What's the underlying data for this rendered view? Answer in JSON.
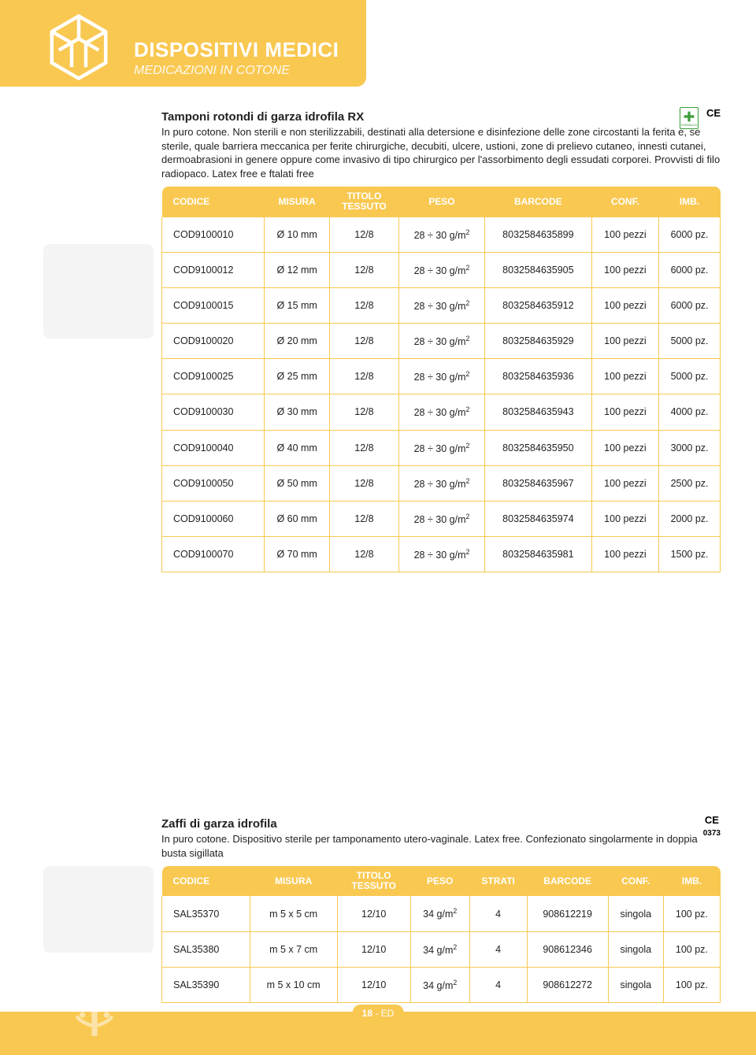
{
  "colors": {
    "accent": "#f9c851",
    "text": "#222222",
    "white": "#ffffff",
    "green": "#3a9d3a",
    "placeholder": "#f4f4f4"
  },
  "header": {
    "title": "DISPOSITIVI MEDICI",
    "subtitle": "MEDICAZIONI IN COTONE"
  },
  "product1": {
    "title": "Tamponi rotondi di garza idrofila RX",
    "description": "In puro cotone. Non sterili e non sterilizzabili, destinati alla detersione e disinfezione delle zone circostanti la ferita e, se sterile, quale barriera meccanica per ferite chirurgiche, decubiti, ulcere, ustioni, zone di prelievo cutaneo, innesti cutanei, dermoabrasioni in genere oppure come invasivo di tipo chirurgico per l'assorbimento degli essudati corporei. Provvisti di filo radiopaco. Latex free e ftalati free",
    "ce": "CE",
    "pharmacy_label": "FARMACIA",
    "columns": [
      "CODICE",
      "MISURA",
      "TITOLO TESSUTO",
      "PESO",
      "BARCODE",
      "CONF.",
      "IMB."
    ],
    "rows": [
      {
        "codice": "COD9100010",
        "misura": "Ø 10 mm",
        "titolo": "12/8",
        "peso": "28 ÷ 30 g/m²",
        "barcode": "8032584635899",
        "conf": "100 pezzi",
        "imb": "6000 pz."
      },
      {
        "codice": "COD9100012",
        "misura": "Ø 12 mm",
        "titolo": "12/8",
        "peso": "28 ÷ 30 g/m²",
        "barcode": "8032584635905",
        "conf": "100 pezzi",
        "imb": "6000 pz."
      },
      {
        "codice": "COD9100015",
        "misura": "Ø 15 mm",
        "titolo": "12/8",
        "peso": "28 ÷ 30 g/m²",
        "barcode": "8032584635912",
        "conf": "100 pezzi",
        "imb": "6000 pz."
      },
      {
        "codice": "COD9100020",
        "misura": "Ø 20 mm",
        "titolo": "12/8",
        "peso": "28 ÷ 30 g/m²",
        "barcode": "8032584635929",
        "conf": "100 pezzi",
        "imb": "5000 pz."
      },
      {
        "codice": "COD9100025",
        "misura": "Ø 25 mm",
        "titolo": "12/8",
        "peso": "28 ÷ 30 g/m²",
        "barcode": "8032584635936",
        "conf": "100 pezzi",
        "imb": "5000 pz."
      },
      {
        "codice": "COD9100030",
        "misura": "Ø 30 mm",
        "titolo": "12/8",
        "peso": "28 ÷ 30 g/m²",
        "barcode": "8032584635943",
        "conf": "100 pezzi",
        "imb": "4000 pz."
      },
      {
        "codice": "COD9100040",
        "misura": "Ø 40 mm",
        "titolo": "12/8",
        "peso": "28 ÷ 30 g/m²",
        "barcode": "8032584635950",
        "conf": "100 pezzi",
        "imb": "3000 pz."
      },
      {
        "codice": "COD9100050",
        "misura": "Ø 50 mm",
        "titolo": "12/8",
        "peso": "28 ÷ 30 g/m²",
        "barcode": "8032584635967",
        "conf": "100 pezzi",
        "imb": "2500 pz."
      },
      {
        "codice": "COD9100060",
        "misura": "Ø 60 mm",
        "titolo": "12/8",
        "peso": "28 ÷ 30 g/m²",
        "barcode": "8032584635974",
        "conf": "100 pezzi",
        "imb": "2000 pz."
      },
      {
        "codice": "COD9100070",
        "misura": "Ø 70 mm",
        "titolo": "12/8",
        "peso": "28 ÷ 30 g/m²",
        "barcode": "8032584635981",
        "conf": "100 pezzi",
        "imb": "1500 pz."
      }
    ]
  },
  "product2": {
    "title": "Zaffi di garza idrofila",
    "description": "In puro cotone. Dispositivo sterile per tamponamento utero-vaginale. Latex free. Confezionato singolarmente in doppia busta sigillata",
    "ce": "CE",
    "ce_num": "0373",
    "columns": [
      "CODICE",
      "MISURA",
      "TITOLO TESSUTO",
      "PESO",
      "STRATI",
      "BARCODE",
      "CONF.",
      "IMB."
    ],
    "rows": [
      {
        "codice": "SAL35370",
        "misura": "m 5 x 5 cm",
        "titolo": "12/10",
        "peso": "34 g/m²",
        "strati": "4",
        "barcode": "908612219",
        "conf": "singola",
        "imb": "100 pz."
      },
      {
        "codice": "SAL35380",
        "misura": "m 5 x 7 cm",
        "titolo": "12/10",
        "peso": "34 g/m²",
        "strati": "4",
        "barcode": "908612346",
        "conf": "singola",
        "imb": "100 pz."
      },
      {
        "codice": "SAL35390",
        "misura": "m 5 x 10 cm",
        "titolo": "12/10",
        "peso": "34 g/m²",
        "strati": "4",
        "barcode": "908612272",
        "conf": "singola",
        "imb": "100 pz."
      }
    ]
  },
  "footer": {
    "page": "18",
    "suffix": " - ED"
  }
}
